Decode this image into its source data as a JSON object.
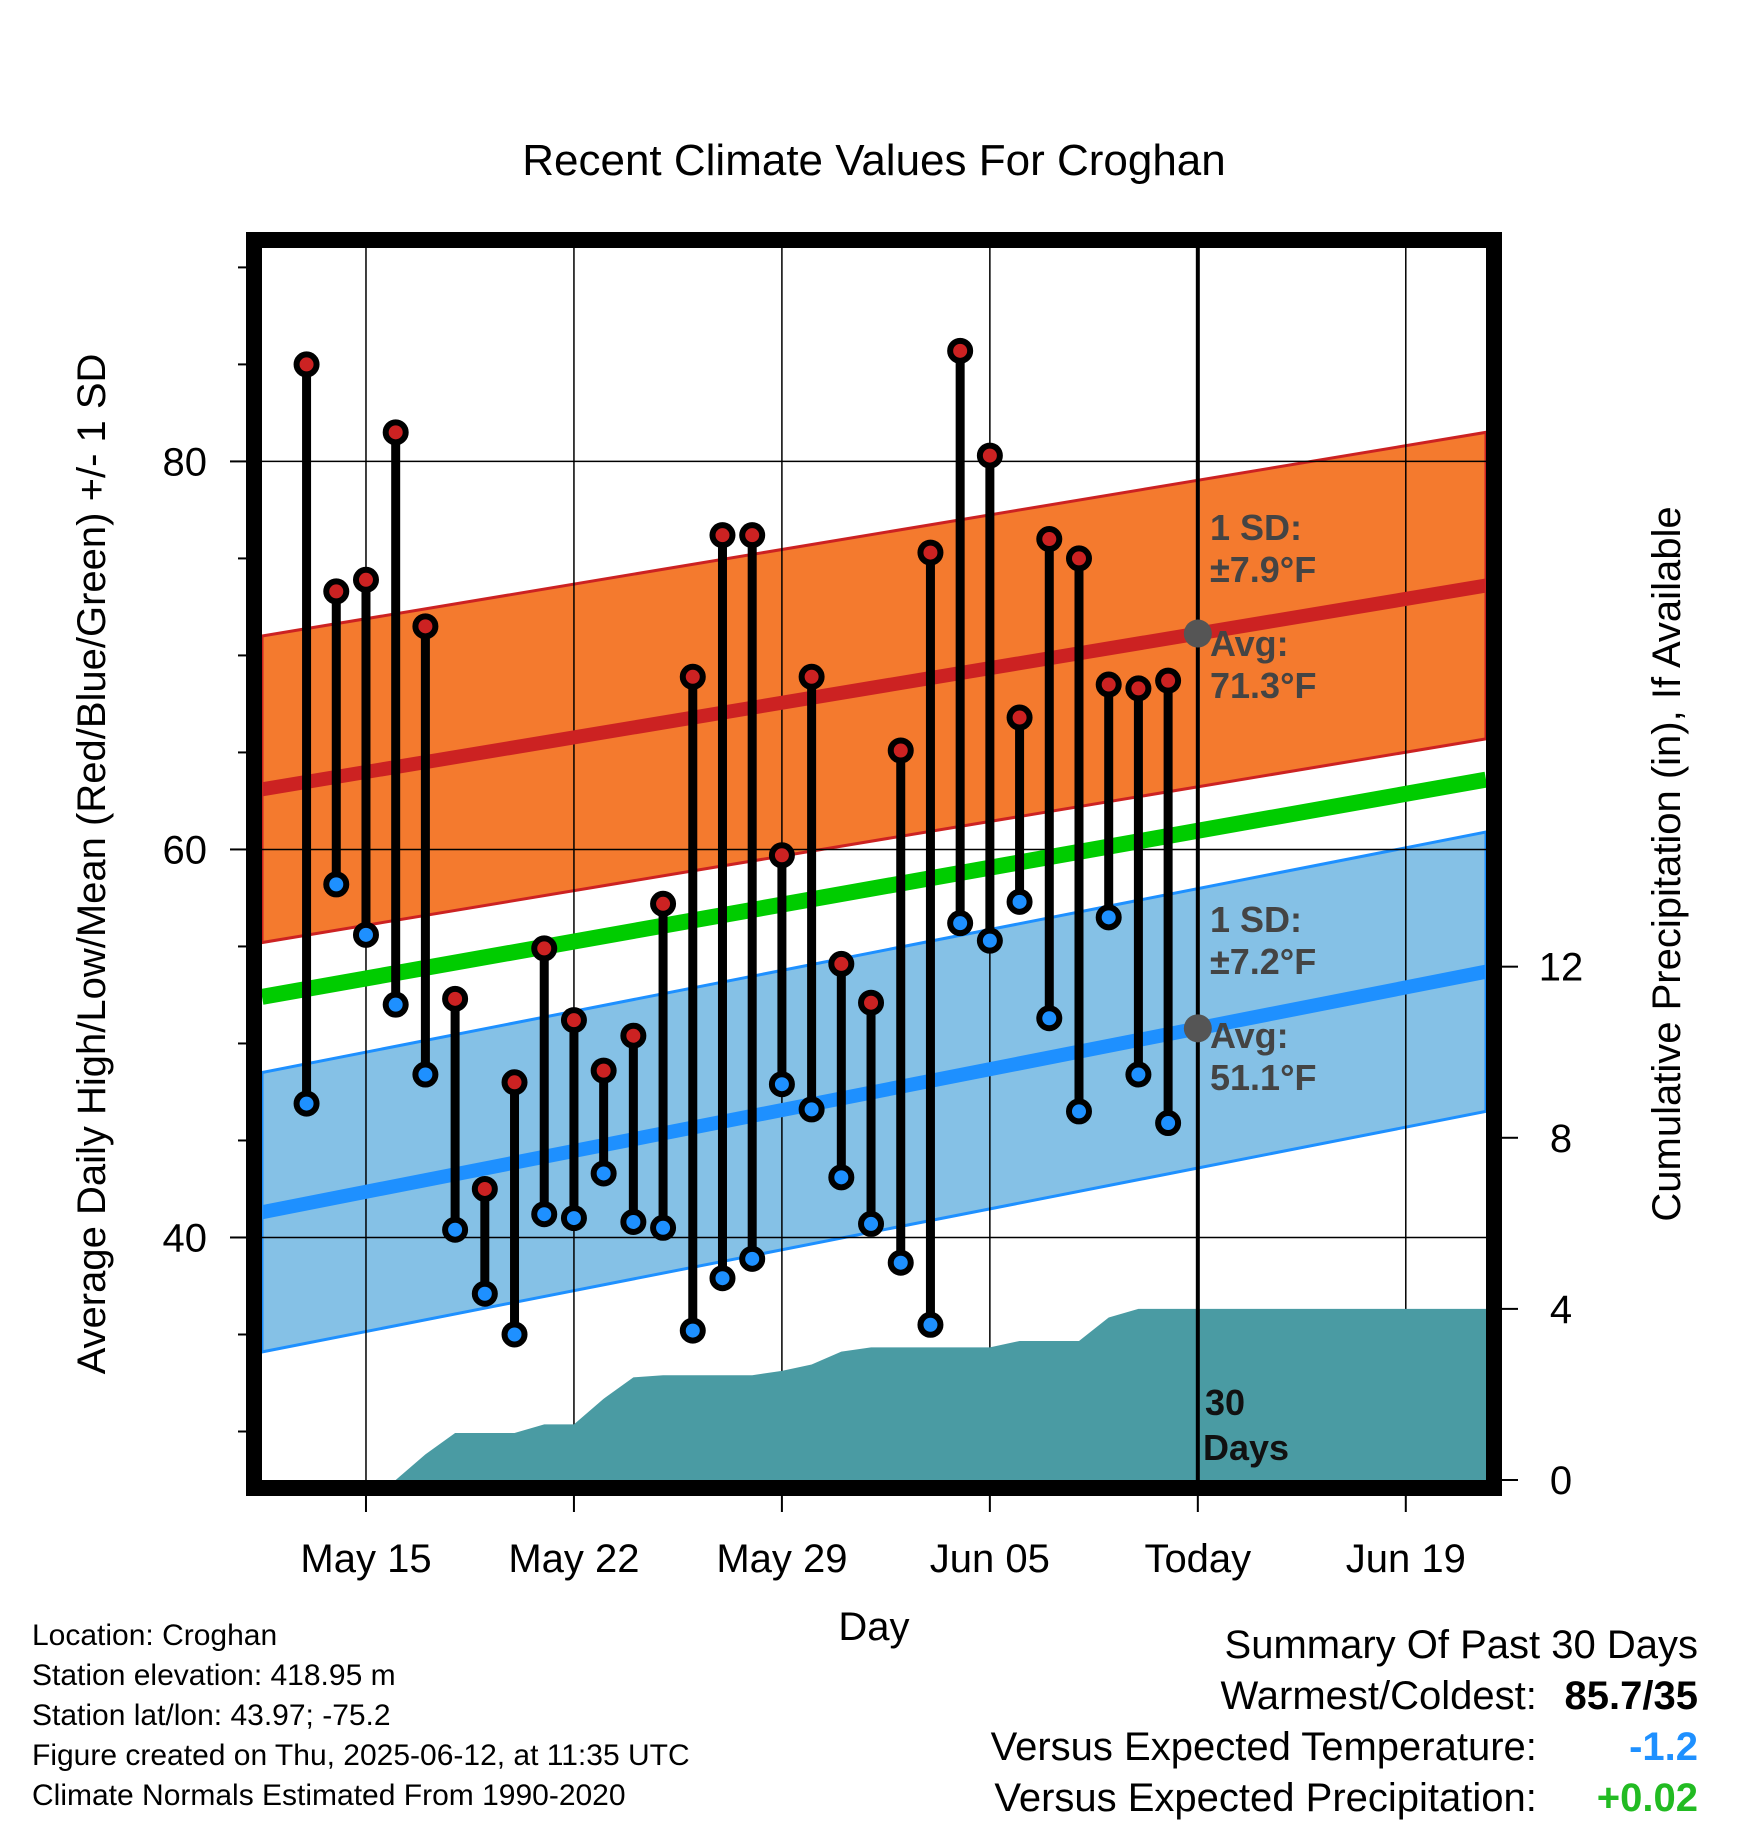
{
  "chart_data": {
    "type": "line",
    "title": "Recent Climate Values For Croghan",
    "xlabel": "Day",
    "ylabel": "Average Daily High/Low/Mean (Red/Blue/Green) +/- 1 SD",
    "y2label": "Cumulative Precipitation (in), If Available",
    "x_tick_labels": [
      "May 15",
      "May 22",
      "May 29",
      "Jun 05",
      "Today",
      "Jun 19"
    ],
    "x_tick_days": [
      3,
      10,
      17,
      24,
      31,
      38
    ],
    "xlim": [
      -0.5,
      40.7
    ],
    "ylim": [
      27.5,
      91
    ],
    "y_ticks": [
      40,
      60,
      80
    ],
    "y2lim": [
      0,
      28.8
    ],
    "y2_ticks": [
      0,
      4,
      8,
      12
    ],
    "today_day": 31,
    "days": [
      1,
      2,
      3,
      4,
      5,
      6,
      7,
      8,
      9,
      10,
      11,
      12,
      13,
      14,
      15,
      16,
      17,
      18,
      19,
      20,
      21,
      22,
      23,
      24,
      25,
      26,
      27,
      28,
      29,
      30
    ],
    "series": [
      {
        "name": "High",
        "color": "#cc2222",
        "values": [
          85,
          73.3,
          73.9,
          81.5,
          71.5,
          52.3,
          42.5,
          48,
          54.9,
          51.2,
          48.6,
          50.4,
          57.2,
          68.9,
          76.2,
          76.2,
          59.7,
          68.9,
          54.1,
          52.1,
          65.1,
          75.3,
          85.7,
          80.3,
          66.8,
          76,
          75,
          68.5,
          68.3,
          68.7
        ]
      },
      {
        "name": "Low",
        "color": "#1e90ff",
        "values": [
          46.9,
          58.2,
          55.6,
          52,
          48.4,
          40.4,
          37.1,
          35,
          41.2,
          41,
          43.3,
          40.8,
          40.5,
          35.2,
          37.9,
          38.9,
          47.9,
          46.6,
          43.1,
          40.7,
          38.7,
          35.5,
          56.2,
          55.3,
          57.3,
          51.3,
          46.5,
          56.5,
          48.4,
          45.9
        ]
      }
    ],
    "normals": {
      "high_avg": [
        63.1,
        73.6
      ],
      "high_sd": 7.9,
      "mean_avg": [
        52.4,
        63.6
      ],
      "low_avg": [
        41.3,
        53.7
      ],
      "low_sd": 7.2,
      "colors": {
        "high_band": "#f47a2e",
        "high_line": "#cc2222",
        "mean": "#00cc00",
        "low_band": "#85c1e6",
        "low_line": "#1e90ff"
      }
    },
    "precip": {
      "color": "#4a9ba3",
      "x": [
        4,
        5,
        6,
        7,
        8,
        9,
        10,
        11,
        12,
        13,
        14,
        15,
        16,
        17,
        18,
        19,
        20,
        21,
        22,
        23,
        24,
        25,
        26,
        27,
        28,
        29,
        30,
        40.7
      ],
      "values": [
        0,
        0.6,
        1.1,
        1.1,
        1.1,
        1.3,
        1.3,
        1.9,
        2.4,
        2.45,
        2.45,
        2.45,
        2.45,
        2.55,
        2.7,
        3.0,
        3.1,
        3.1,
        3.1,
        3.1,
        3.1,
        3.25,
        3.25,
        3.25,
        3.8,
        4.0,
        4.0,
        4.0
      ]
    },
    "annotations": {
      "high_sd_label": "1 SD:",
      "high_sd_value": "±7.9°F",
      "high_avg_label": "Avg:",
      "high_avg_value": "71.3°F",
      "low_sd_label": "1 SD:",
      "low_sd_value": "±7.2°F",
      "low_avg_label": "Avg:",
      "low_avg_value": "51.1°F",
      "days_number": "30",
      "days_word": "Days"
    }
  },
  "footer": {
    "location": "Location: Croghan",
    "elevation": "Station elevation: 418.95 m",
    "latlon": "Station lat/lon: 43.97; -75.2",
    "created": "Figure created on Thu, 2025-06-12, at 11:35 UTC",
    "normals": "Climate Normals Estimated From 1990-2020"
  },
  "summary": {
    "title": "Summary Of Past 30 Days",
    "warm_cold_label": "Warmest/Coldest:",
    "warm_cold_value": "85.7/35",
    "temp_label": "Versus Expected Temperature:",
    "temp_value": "-1.2",
    "temp_color": "#1e90ff",
    "precip_label": "Versus Expected Precipitation:",
    "precip_value": "+0.02",
    "precip_color": "#22bb22"
  }
}
